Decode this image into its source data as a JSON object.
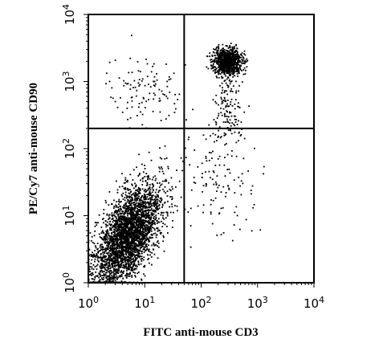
{
  "chart_data": {
    "type": "scatter",
    "title": "",
    "xlabel": "FITC anti-mouse CD3",
    "ylabel": "PE/Cy7 anti-mouse CD90",
    "xscale": "log",
    "yscale": "log",
    "xlim": [
      1,
      10000
    ],
    "ylim": [
      1,
      10000
    ],
    "x_ticks": [
      {
        "base": "10",
        "exp": "0",
        "value": 1
      },
      {
        "base": "10",
        "exp": "1",
        "value": 10
      },
      {
        "base": "10",
        "exp": "2",
        "value": 100
      },
      {
        "base": "10",
        "exp": "3",
        "value": 1000
      },
      {
        "base": "10",
        "exp": "4",
        "value": 10000
      }
    ],
    "y_ticks": [
      {
        "base": "10",
        "exp": "0",
        "value": 1
      },
      {
        "base": "10",
        "exp": "1",
        "value": 10
      },
      {
        "base": "10",
        "exp": "2",
        "value": 100
      },
      {
        "base": "10",
        "exp": "3",
        "value": 1000
      },
      {
        "base": "10",
        "exp": "4",
        "value": 10000
      }
    ],
    "quadrant_gates": {
      "x": 50,
      "y": 200
    },
    "grid": false,
    "point_color": "#000000",
    "populations": [
      {
        "center": [
          5,
          5
        ],
        "spread": [
          0.3,
          0.32
        ],
        "tilt": 0.75,
        "approx_count": 3200
      },
      {
        "center": [
          300,
          2000
        ],
        "spread": [
          0.13,
          0.09
        ],
        "tilt": 0.0,
        "approx_count": 950
      },
      {
        "center": [
          300,
          400
        ],
        "spread": [
          0.12,
          0.3
        ],
        "tilt": 0.0,
        "approx_count": 150
      },
      {
        "center": [
          10,
          800
        ],
        "spread": [
          0.35,
          0.25
        ],
        "tilt": 0.0,
        "approx_count": 110
      },
      {
        "center": [
          200,
          40
        ],
        "spread": [
          0.35,
          0.45
        ],
        "tilt": 0.0,
        "approx_count": 130
      }
    ]
  }
}
